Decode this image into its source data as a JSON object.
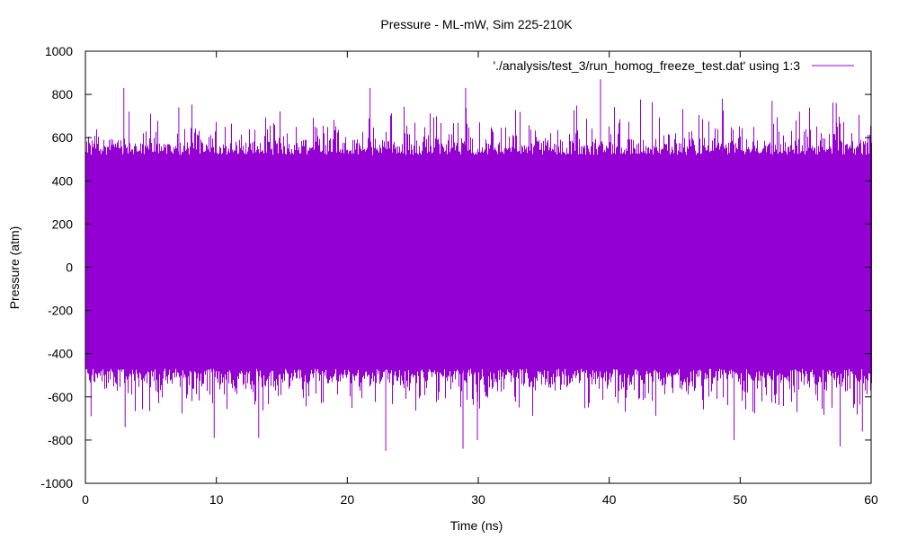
{
  "chart_data": {
    "type": "line",
    "title": "Pressure - ML-mW, Sim 225-210K",
    "xlabel": "Time (ns)",
    "ylabel": "Pressure (atm)",
    "xlim": [
      0,
      60
    ],
    "ylim": [
      -1000,
      1000
    ],
    "xticks": [
      0,
      10,
      20,
      30,
      40,
      50,
      60
    ],
    "yticks": [
      -1000,
      -800,
      -600,
      -400,
      -200,
      0,
      200,
      400,
      600,
      800,
      1000
    ],
    "grid": false,
    "legend_position": "top-right",
    "series": [
      {
        "name": "'./analysis/test_3/run_homog_freeze_test.dat' using 1:3",
        "color": "#9400d3",
        "description_of_values": "dense noisy signal, mean ~0",
        "envelope_upper_typical": 520,
        "envelope_lower_typical": -470,
        "spikes_upper": [
          [
            2.9,
            830
          ],
          [
            3.3,
            720
          ],
          [
            7.1,
            740
          ],
          [
            21.7,
            830
          ],
          [
            29.0,
            830
          ],
          [
            39.3,
            870
          ],
          [
            48.6,
            780
          ],
          [
            52.4,
            770
          ],
          [
            54.5,
            720
          ],
          [
            57.3,
            760
          ]
        ],
        "spikes_lower": [
          [
            0.4,
            -690
          ],
          [
            3.0,
            -740
          ],
          [
            9.8,
            -790
          ],
          [
            13.2,
            -790
          ],
          [
            22.9,
            -850
          ],
          [
            28.8,
            -840
          ],
          [
            29.9,
            -800
          ],
          [
            49.5,
            -800
          ],
          [
            57.6,
            -830
          ],
          [
            59.3,
            -760
          ]
        ],
        "x": [
          0,
          60
        ]
      }
    ]
  }
}
